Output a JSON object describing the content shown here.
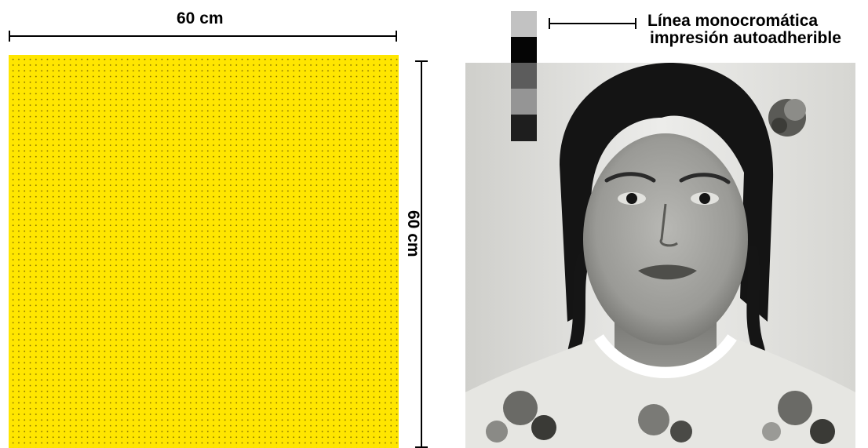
{
  "width_label": "60 cm",
  "height_label": "60 cm",
  "annotation": {
    "line1": "Línea monocromática",
    "line2": "impresión autoadherible"
  },
  "colors": {
    "panel": "#ffe600",
    "swatches": [
      "#c2c2c2",
      "#050505",
      "#5c5c5c",
      "#959595",
      "#1e1e1e"
    ]
  }
}
